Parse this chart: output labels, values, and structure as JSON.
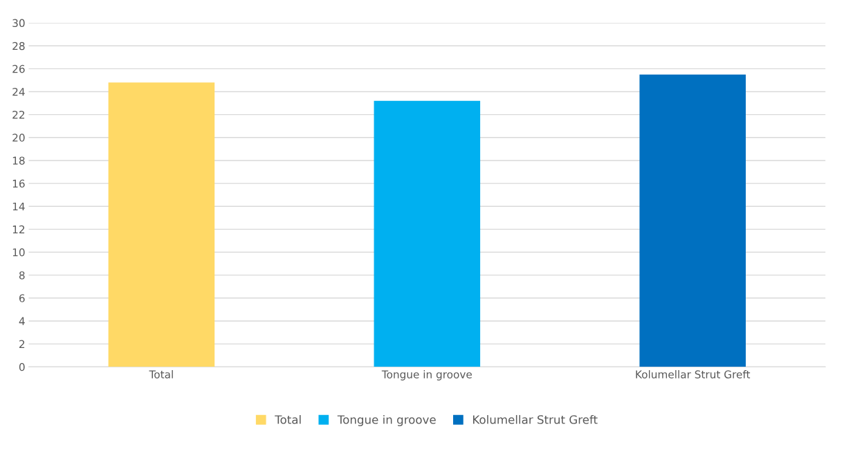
{
  "chart_data": {
    "type": "bar",
    "categories": [
      "Total",
      "Tongue in groove",
      "Kolumellar Strut Greft"
    ],
    "series": [
      {
        "name": "Total",
        "color": "#ffd966",
        "values": [
          24.8,
          null,
          null
        ]
      },
      {
        "name": "Tongue in groove",
        "color": "#00b0f0",
        "values": [
          null,
          23.2,
          null
        ]
      },
      {
        "name": "Kolumellar Strut Greft",
        "color": "#0070c0",
        "values": [
          null,
          null,
          25.5
        ]
      }
    ],
    "ylim": [
      0,
      30
    ],
    "yticks": [
      0,
      2,
      4,
      6,
      8,
      10,
      12,
      14,
      16,
      18,
      20,
      22,
      24,
      26,
      28,
      30
    ],
    "grid": "y",
    "legend": "bottom"
  }
}
